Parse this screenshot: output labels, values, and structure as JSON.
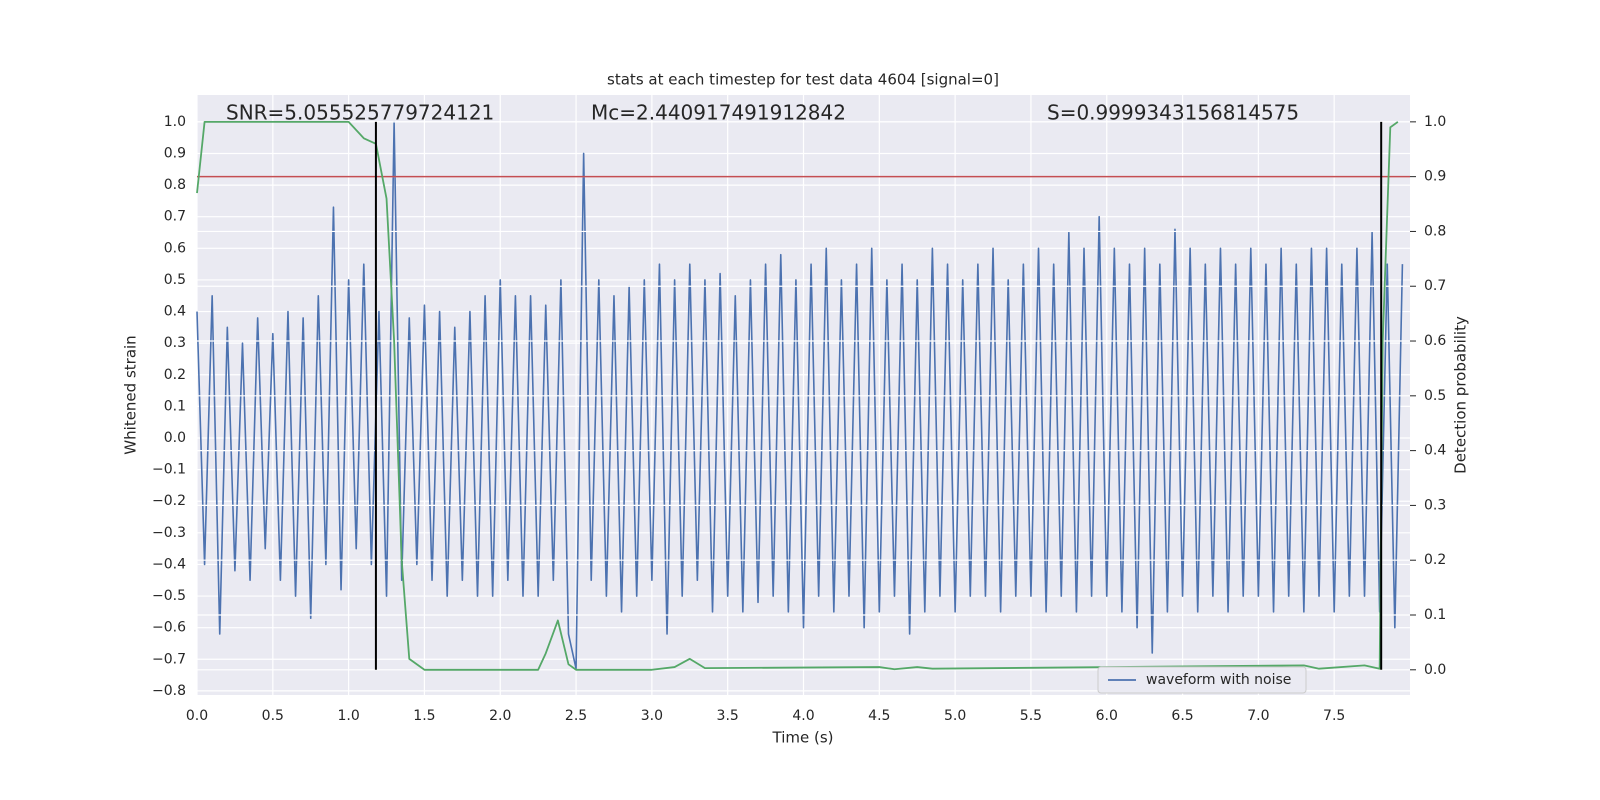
{
  "chart_data": {
    "type": "line",
    "title": "stats at each timestep for test data 4604 [signal=0]",
    "xlabel": "Time (s)",
    "ylabel": "Whitened strain",
    "y2label": "Detection probability",
    "annotations": [
      "SNR=5.055525779724121",
      "Mc=2.440917491912842",
      "S=0.9999343156814575"
    ],
    "xlim": [
      0,
      8
    ],
    "ylim": [
      -0.813,
      1.085
    ],
    "y2lim": [
      -0.046,
      1.049
    ],
    "xticks": [
      {
        "value": 0,
        "label": "0.0"
      },
      0.5,
      {
        "value": 1,
        "label": "1.0"
      },
      1.5,
      {
        "value": 2,
        "label": "2.0"
      },
      2.5,
      {
        "value": 3,
        "label": "3.0"
      },
      3.5,
      {
        "value": 4,
        "label": "4.0"
      },
      4.5,
      {
        "value": 5,
        "label": "5.0"
      },
      5.5,
      {
        "value": 6,
        "label": "6.0"
      },
      6.5,
      {
        "value": 7,
        "label": "7.0"
      },
      7.5
    ],
    "yticks": [
      {
        "value": -0.8,
        "label": "−0.8"
      },
      {
        "value": -0.7,
        "label": "−0.7"
      },
      {
        "value": -0.6,
        "label": "−0.6"
      },
      {
        "value": -0.5,
        "label": "−0.5"
      },
      {
        "value": -0.4,
        "label": "−0.4"
      },
      {
        "value": -0.3,
        "label": "−0.3"
      },
      {
        "value": -0.2,
        "label": "−0.2"
      },
      {
        "value": -0.1,
        "label": "−0.1"
      },
      {
        "value": 0,
        "label": "0.0"
      },
      0.1,
      0.2,
      0.3,
      0.4,
      0.5,
      0.6,
      0.7,
      0.8,
      0.9,
      {
        "value": 1,
        "label": "1.0"
      }
    ],
    "y2ticks": [
      {
        "value": 0,
        "label": "0.0"
      },
      0.1,
      0.2,
      0.3,
      0.4,
      0.5,
      0.6,
      0.7,
      0.8,
      0.9,
      {
        "value": 1,
        "label": "1.0"
      }
    ],
    "grid": true,
    "legend": "lower right",
    "series": [
      {
        "name": "waveform with noise",
        "color": "#4c72b0",
        "x": [
          0,
          0.05,
          0.1,
          0.15,
          0.2,
          0.25,
          0.3,
          0.35,
          0.4,
          0.45,
          0.5,
          0.55,
          0.6,
          0.65,
          0.7,
          0.75,
          0.8,
          0.85,
          0.9,
          0.95,
          1,
          1.05,
          1.1,
          1.15,
          1.2,
          1.25,
          1.3,
          1.35,
          1.4,
          1.45,
          1.5,
          1.55,
          1.6,
          1.65,
          1.7,
          1.75,
          1.8,
          1.85,
          1.9,
          1.95,
          2,
          2.05,
          2.1,
          2.15,
          2.2,
          2.25,
          2.3,
          2.35,
          2.4,
          2.45,
          2.5,
          2.55,
          2.6,
          2.65,
          2.7,
          2.75,
          2.8,
          2.85,
          2.9,
          2.95,
          3,
          3.05,
          3.1,
          3.15,
          3.2,
          3.25,
          3.3,
          3.35,
          3.4,
          3.45,
          3.5,
          3.55,
          3.6,
          3.65,
          3.7,
          3.75,
          3.8,
          3.85,
          3.9,
          3.95,
          4,
          4.05,
          4.1,
          4.15,
          4.2,
          4.25,
          4.3,
          4.35,
          4.4,
          4.45,
          4.5,
          4.55,
          4.6,
          4.65,
          4.7,
          4.75,
          4.8,
          4.85,
          4.9,
          4.95,
          5,
          5.05,
          5.1,
          5.15,
          5.2,
          5.25,
          5.3,
          5.35,
          5.4,
          5.45,
          5.5,
          5.55,
          5.6,
          5.65,
          5.7,
          5.75,
          5.8,
          5.85,
          5.9,
          5.95,
          6,
          6.05,
          6.1,
          6.15,
          6.2,
          6.25,
          6.3,
          6.35,
          6.4,
          6.45,
          6.5,
          6.55,
          6.6,
          6.65,
          6.7,
          6.75,
          6.8,
          6.85,
          6.9,
          6.95,
          7,
          7.05,
          7.1,
          7.15,
          7.2,
          7.25,
          7.3,
          7.35,
          7.4,
          7.45,
          7.5,
          7.55,
          7.6,
          7.65,
          7.7,
          7.75,
          7.8,
          7.85,
          7.9,
          7.95
        ],
        "values": [
          0.4,
          -0.4,
          0.45,
          -0.62,
          0.35,
          -0.42,
          0.3,
          -0.45,
          0.38,
          -0.35,
          0.33,
          -0.45,
          0.4,
          -0.5,
          0.38,
          -0.57,
          0.45,
          -0.4,
          0.73,
          -0.48,
          0.5,
          -0.35,
          0.55,
          -0.4,
          0.4,
          -0.5,
          1.0,
          -0.45,
          0.38,
          -0.4,
          0.42,
          -0.45,
          0.4,
          -0.5,
          0.35,
          -0.45,
          0.4,
          -0.5,
          0.45,
          -0.5,
          0.5,
          -0.45,
          0.45,
          -0.5,
          0.45,
          -0.5,
          0.42,
          -0.45,
          0.5,
          -0.62,
          -0.73,
          0.9,
          -0.45,
          0.5,
          -0.5,
          0.45,
          -0.55,
          0.48,
          -0.5,
          0.5,
          -0.45,
          0.55,
          -0.62,
          0.5,
          -0.5,
          0.55,
          -0.45,
          0.5,
          -0.55,
          0.52,
          -0.5,
          0.45,
          -0.55,
          0.5,
          -0.52,
          0.55,
          -0.5,
          0.58,
          -0.55,
          0.5,
          -0.6,
          0.55,
          -0.5,
          0.6,
          -0.55,
          0.5,
          -0.5,
          0.55,
          -0.6,
          0.6,
          -0.55,
          0.5,
          -0.5,
          0.55,
          -0.62,
          0.5,
          -0.55,
          0.6,
          -0.5,
          0.55,
          -0.55,
          0.5,
          -0.5,
          0.55,
          -0.5,
          0.6,
          -0.55,
          0.5,
          -0.5,
          0.55,
          -0.5,
          0.6,
          -0.55,
          0.55,
          -0.5,
          0.65,
          -0.55,
          0.6,
          -0.5,
          0.7,
          -0.5,
          0.6,
          -0.55,
          0.55,
          -0.6,
          0.6,
          -0.68,
          0.55,
          -0.55,
          0.66,
          -0.5,
          0.6,
          -0.55,
          0.55,
          -0.5,
          0.6,
          -0.55,
          0.55,
          -0.5,
          0.6,
          -0.5,
          0.55,
          -0.55,
          0.6,
          -0.5,
          0.55,
          -0.55,
          0.6,
          -0.5,
          0.6,
          -0.55,
          0.55,
          -0.5,
          0.6,
          -0.5,
          0.65,
          -0.55,
          0.55,
          -0.6,
          0.55
        ]
      },
      {
        "color": "#55a868",
        "axis": "y2",
        "x": [
          0,
          0.05,
          1.0,
          1.1,
          1.18,
          1.25,
          1.3,
          1.35,
          1.4,
          1.5,
          1.6,
          2.0,
          2.25,
          2.3,
          2.38,
          2.45,
          2.5,
          3.0,
          3.15,
          3.25,
          3.35,
          4.5,
          4.6,
          4.75,
          4.85,
          7.3,
          7.4,
          7.7,
          7.8,
          7.82,
          7.87,
          7.92
        ],
        "values": [
          0.87,
          1.0,
          1.0,
          0.97,
          0.96,
          0.86,
          0.6,
          0.2,
          0.02,
          0.0,
          0.0,
          0.0,
          0.0,
          0.03,
          0.09,
          0.01,
          0.0,
          0.0,
          0.005,
          0.02,
          0.003,
          0.005,
          0.001,
          0.005,
          0.002,
          0.008,
          0.002,
          0.008,
          0.002,
          0.6,
          0.99,
          1.0
        ]
      }
    ],
    "hlines": [
      {
        "y": 0.9,
        "axis": "y2",
        "color": "#c44e52"
      }
    ],
    "vlines": [
      {
        "x": 1.18,
        "ymin": 0,
        "ymax": 1,
        "axis": "y2",
        "color": "#000000"
      },
      {
        "x": 7.81,
        "ymin": 0,
        "ymax": 1,
        "axis": "y2",
        "color": "#000000"
      }
    ]
  }
}
